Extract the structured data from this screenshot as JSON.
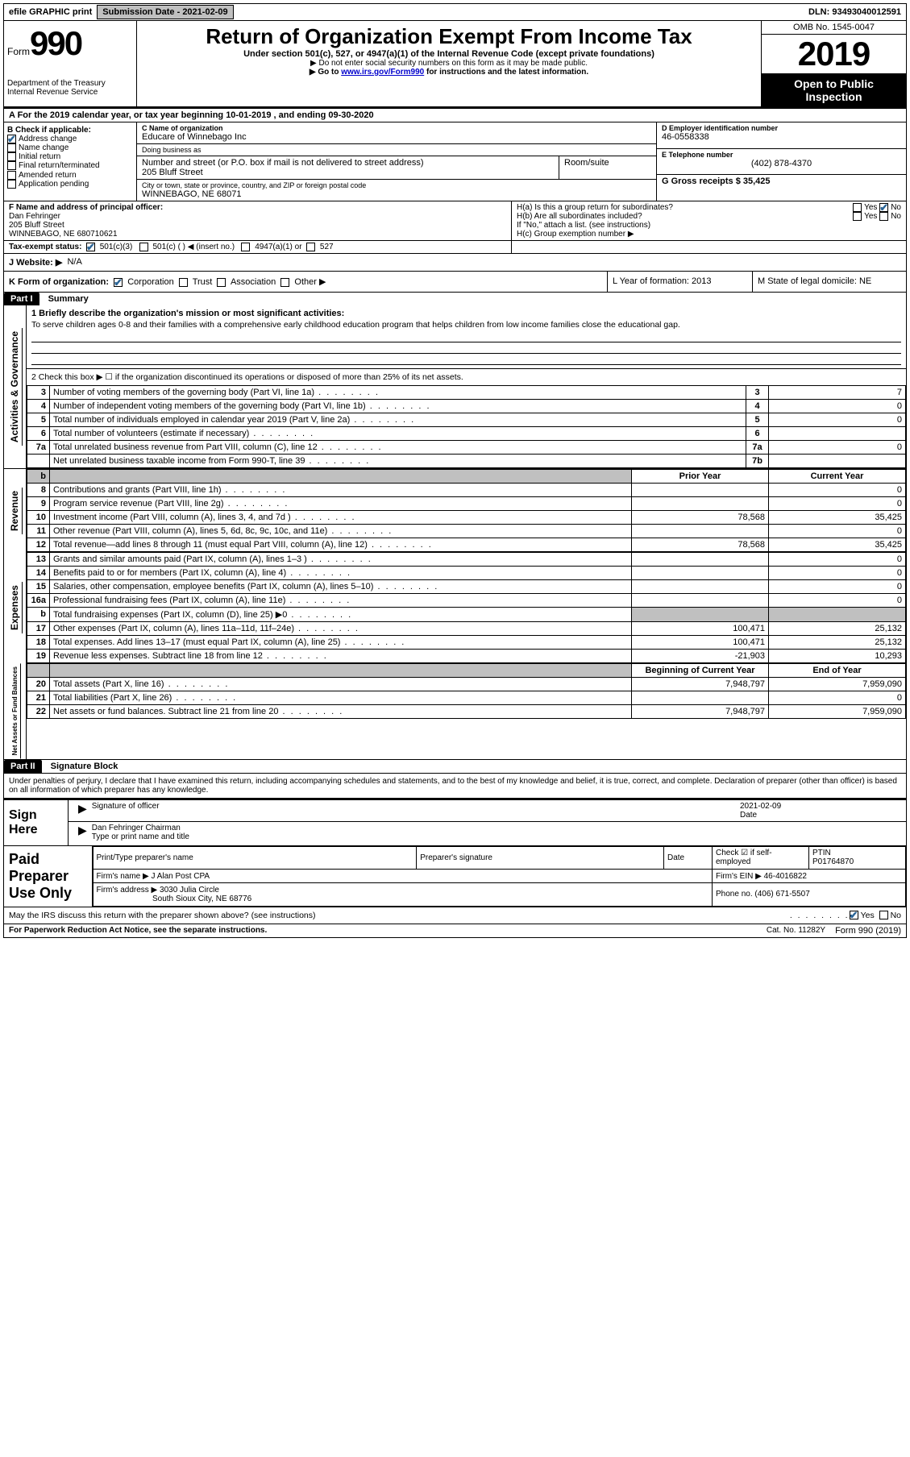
{
  "topbar": {
    "efile_label": "efile GRAPHIC print",
    "submission_label": "Submission Date - 2021-02-09",
    "dln_label": "DLN: 93493040012591"
  },
  "header": {
    "form_word": "Form",
    "form_number": "990",
    "dept": "Department of the Treasury",
    "irs": "Internal Revenue Service",
    "title": "Return of Organization Exempt From Income Tax",
    "sub1": "Under section 501(c), 527, or 4947(a)(1) of the Internal Revenue Code (except private foundations)",
    "sub2": "▶ Do not enter social security numbers on this form as it may be made public.",
    "sub3a": "▶ Go to ",
    "sub3link": "www.irs.gov/Form990",
    "sub3b": " for instructions and the latest information.",
    "omb": "OMB No. 1545-0047",
    "year": "2019",
    "open": "Open to Public Inspection"
  },
  "A": {
    "text": "A For the 2019 calendar year, or tax year beginning 10-01-2019   , and ending 09-30-2020"
  },
  "B": {
    "label": "B Check if applicable:",
    "items": [
      "Address change",
      "Name change",
      "Initial return",
      "Final return/terminated",
      "Amended return",
      "Application pending"
    ]
  },
  "C": {
    "name_label": "C Name of organization",
    "name": "Educare of Winnebago Inc",
    "dba_label": "Doing business as",
    "dba": "",
    "addr_label": "Number and street (or P.O. box if mail is not delivered to street address)",
    "room_label": "Room/suite",
    "addr": "205 Bluff Street",
    "city_label": "City or town, state or province, country, and ZIP or foreign postal code",
    "city": "WINNEBAGO, NE  68071"
  },
  "D": {
    "label": "D Employer identification number",
    "val": "46-0558338"
  },
  "E": {
    "label": "E Telephone number",
    "val": "(402) 878-4370"
  },
  "G": {
    "label": "G Gross receipts $ 35,425"
  },
  "F": {
    "label": "F Name and address of principal officer:",
    "name": "Dan Fehringer",
    "addr1": "205 Bluff Street",
    "addr2": "WINNEBAGO, NE  680710621"
  },
  "H": {
    "a": "H(a)  Is this a group return for subordinates?",
    "b": "H(b)  Are all subordinates included?",
    "bnote": "If \"No,\" attach a list. (see instructions)",
    "c": "H(c)  Group exemption number ▶",
    "yes": "Yes",
    "no": "No"
  },
  "I": {
    "label": "Tax-exempt status:",
    "opts": [
      "501(c)(3)",
      "501(c) (  ) ◀ (insert no.)",
      "4947(a)(1) or",
      "527"
    ]
  },
  "J": {
    "label": "J  Website: ▶",
    "val": "N/A"
  },
  "K": {
    "label": "K Form of organization:",
    "opts": [
      "Corporation",
      "Trust",
      "Association",
      "Other ▶"
    ]
  },
  "L": {
    "label": "L Year of formation: 2013"
  },
  "M": {
    "label": "M State of legal domicile: NE"
  },
  "part1": {
    "hdr": "Part I",
    "title": "Summary"
  },
  "summary": {
    "q1": "1  Briefly describe the organization's mission or most significant activities:",
    "mission": "To serve children ages 0-8 and their families with a comprehensive early childhood education program that helps children from low income families close the educational gap.",
    "q2": "2   Check this box ▶ ☐  if the organization discontinued its operations or disposed of more than 25% of its net assets.",
    "rows": [
      {
        "n": "3",
        "t": "Number of voting members of the governing body (Part VI, line 1a)",
        "box": "3",
        "v": "7"
      },
      {
        "n": "4",
        "t": "Number of independent voting members of the governing body (Part VI, line 1b)",
        "box": "4",
        "v": "0"
      },
      {
        "n": "5",
        "t": "Total number of individuals employed in calendar year 2019 (Part V, line 2a)",
        "box": "5",
        "v": "0"
      },
      {
        "n": "6",
        "t": "Total number of volunteers (estimate if necessary)",
        "box": "6",
        "v": ""
      },
      {
        "n": "7a",
        "t": "Total unrelated business revenue from Part VIII, column (C), line 12",
        "box": "7a",
        "v": "0"
      },
      {
        "n": "",
        "t": "Net unrelated business taxable income from Form 990-T, line 39",
        "box": "7b",
        "v": ""
      }
    ]
  },
  "yearhdr": {
    "prior": "Prior Year",
    "current": "Current Year"
  },
  "revenue": {
    "label": "Revenue",
    "rows": [
      {
        "n": "8",
        "t": "Contributions and grants (Part VIII, line 1h)",
        "p": "",
        "c": "0"
      },
      {
        "n": "9",
        "t": "Program service revenue (Part VIII, line 2g)",
        "p": "",
        "c": "0"
      },
      {
        "n": "10",
        "t": "Investment income (Part VIII, column (A), lines 3, 4, and 7d )",
        "p": "78,568",
        "c": "35,425"
      },
      {
        "n": "11",
        "t": "Other revenue (Part VIII, column (A), lines 5, 6d, 8c, 9c, 10c, and 11e)",
        "p": "",
        "c": "0"
      },
      {
        "n": "12",
        "t": "Total revenue—add lines 8 through 11 (must equal Part VIII, column (A), line 12)",
        "p": "78,568",
        "c": "35,425"
      }
    ]
  },
  "expenses": {
    "label": "Expenses",
    "rows": [
      {
        "n": "13",
        "t": "Grants and similar amounts paid (Part IX, column (A), lines 1–3 )",
        "p": "",
        "c": "0"
      },
      {
        "n": "14",
        "t": "Benefits paid to or for members (Part IX, column (A), line 4)",
        "p": "",
        "c": "0"
      },
      {
        "n": "15",
        "t": "Salaries, other compensation, employee benefits (Part IX, column (A), lines 5–10)",
        "p": "",
        "c": "0"
      },
      {
        "n": "16a",
        "t": "Professional fundraising fees (Part IX, column (A), line 11e)",
        "p": "",
        "c": "0"
      },
      {
        "n": "b",
        "t": "Total fundraising expenses (Part IX, column (D), line 25) ▶0",
        "p": "gray",
        "c": "gray"
      },
      {
        "n": "17",
        "t": "Other expenses (Part IX, column (A), lines 11a–11d, 11f–24e)",
        "p": "100,471",
        "c": "25,132"
      },
      {
        "n": "18",
        "t": "Total expenses. Add lines 13–17 (must equal Part IX, column (A), line 25)",
        "p": "100,471",
        "c": "25,132"
      },
      {
        "n": "19",
        "t": "Revenue less expenses. Subtract line 18 from line 12",
        "p": "-21,903",
        "c": "10,293"
      }
    ]
  },
  "netassets": {
    "label": "Net Assets or Fund Balances",
    "hdr": {
      "b": "Beginning of Current Year",
      "e": "End of Year"
    },
    "rows": [
      {
        "n": "20",
        "t": "Total assets (Part X, line 16)",
        "p": "7,948,797",
        "c": "7,959,090"
      },
      {
        "n": "21",
        "t": "Total liabilities (Part X, line 26)",
        "p": "",
        "c": "0"
      },
      {
        "n": "22",
        "t": "Net assets or fund balances. Subtract line 21 from line 20",
        "p": "7,948,797",
        "c": "7,959,090"
      }
    ]
  },
  "part2": {
    "hdr": "Part II",
    "title": "Signature Block"
  },
  "decl": "Under penalties of perjury, I declare that I have examined this return, including accompanying schedules and statements, and to the best of my knowledge and belief, it is true, correct, and complete. Declaration of preparer (other than officer) is based on all information of which preparer has any knowledge.",
  "sign": {
    "label": "Sign Here",
    "sig_label": "Signature of officer",
    "date": "2021-02-09",
    "date_label": "Date",
    "name": "Dan Fehringer  Chairman",
    "name_label": "Type or print name and title"
  },
  "paid": {
    "label": "Paid Preparer Use Only",
    "h1": "Print/Type preparer's name",
    "h2": "Preparer's signature",
    "h3": "Date",
    "check": "Check ☑ if self-employed",
    "ptin_l": "PTIN",
    "ptin": "P01764870",
    "firm_l": "Firm's name    ▶",
    "firm": "J Alan Post CPA",
    "ein_l": "Firm's EIN ▶",
    "ein": "46-4016822",
    "addr_l": "Firm's address ▶",
    "addr1": "3030 Julia Circle",
    "addr2": "South Sioux City, NE  68776",
    "phone_l": "Phone no.",
    "phone": "(406) 671-5507"
  },
  "discuss": "May the IRS discuss this return with the preparer shown above? (see instructions)",
  "foot": {
    "left": "For Paperwork Reduction Act Notice, see the separate instructions.",
    "mid": "Cat. No. 11282Y",
    "right": "Form 990 (2019)"
  },
  "sidebars": {
    "act": "Activities & Governance"
  }
}
